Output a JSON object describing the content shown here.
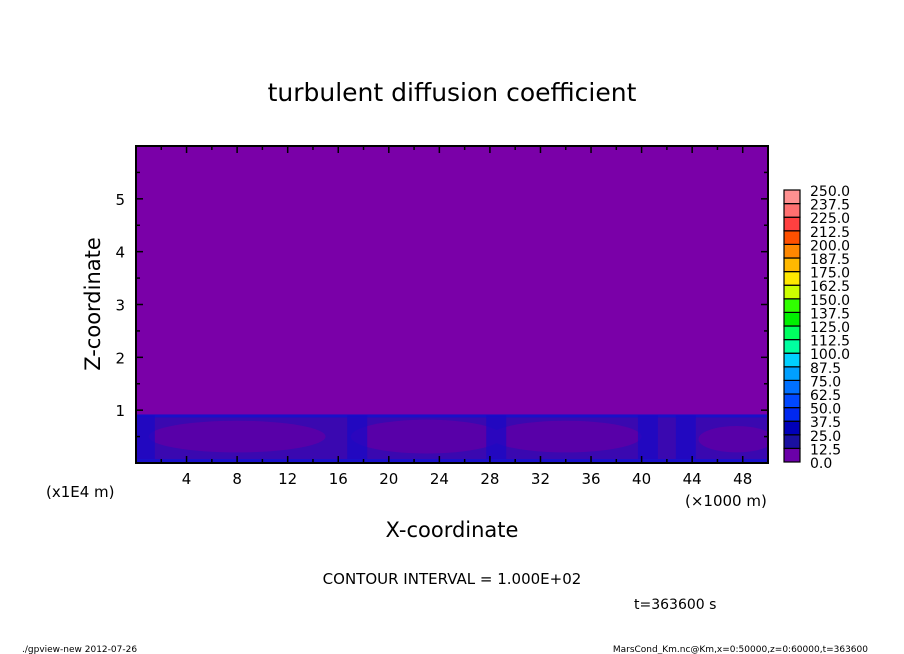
{
  "chart_data": {
    "type": "heatmap",
    "title": "turbulent diffusion coefficient",
    "xlabel": "X-coordinate",
    "ylabel": "Z-coordinate",
    "x_unit": "(×1000 m)",
    "y_unit": "(x1E4 m)",
    "xlim": [
      0,
      50
    ],
    "ylim": [
      0,
      6
    ],
    "x_ticks": [
      4,
      8,
      12,
      16,
      20,
      24,
      28,
      32,
      36,
      40,
      44,
      48
    ],
    "y_ticks": [
      1,
      2,
      3,
      4,
      5
    ],
    "colorbar": {
      "levels": [
        "0.0",
        "12.5",
        "25.0",
        "37.5",
        "50.0",
        "62.5",
        "75.0",
        "87.5",
        "100.0",
        "112.5",
        "125.0",
        "137.5",
        "150.0",
        "162.5",
        "175.0",
        "187.5",
        "200.0",
        "212.5",
        "225.0",
        "237.5",
        "250.0"
      ],
      "colors": [
        "#6a00a8",
        "#1a10a0",
        "#0000b8",
        "#0010d8",
        "#0028f0",
        "#0048ff",
        "#0070ff",
        "#00a0ff",
        "#00d0ff",
        "#00ffe0",
        "#00ffa0",
        "#00ff60",
        "#00f000",
        "#30ff00",
        "#80ff00",
        "#ccff00",
        "#ffe800",
        "#ffb800",
        "#ff8800",
        "#ff5000",
        "#ff0000",
        "#ff4040",
        "#ff7070",
        "#ff9090"
      ]
    },
    "field_description_values": {
      "background_value_color": "#7a00a8",
      "boundary_layer_top": 0.9
    },
    "contour_interval": "CONTOUR INTERVAL = 1.000E+02",
    "time_label": "t=363600 s"
  },
  "footer": {
    "left": "./gpview-new  2012-07-26",
    "right": "MarsCond_Km.nc@Km,x=0:50000,z=0:60000,t=363600"
  }
}
